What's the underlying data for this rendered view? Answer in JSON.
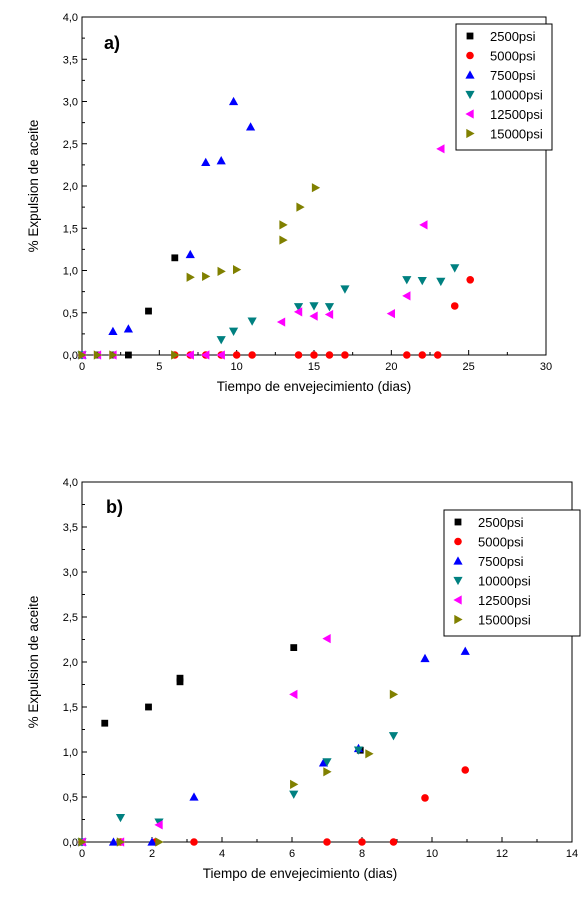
{
  "chart_data": [
    {
      "type": "scatter",
      "panel_label": "a)",
      "xlabel": "Tiempo de envejecimiento (dias)",
      "ylabel": "% Expulsion de aceite",
      "xlim": [
        0,
        30
      ],
      "ylim": [
        0,
        4
      ],
      "xticks": [
        0,
        5,
        10,
        15,
        20,
        25,
        30
      ],
      "yticks": [
        0,
        0.5,
        1,
        1.5,
        2,
        2.5,
        3,
        3.5,
        4
      ],
      "ytick_labels": [
        "0,0",
        "0,5",
        "1,0",
        "1,5",
        "2,0",
        "2,5",
        "3,0",
        "3,5",
        "4,0"
      ],
      "legend_position": "top-right",
      "grid": false,
      "series": [
        {
          "name": "2500psi",
          "marker": "square",
          "color": "#000000",
          "x": [
            0,
            1,
            2,
            3,
            4.3,
            6
          ],
          "y": [
            0,
            0,
            0,
            0,
            0.52,
            1.15
          ]
        },
        {
          "name": "5000psi",
          "marker": "circle",
          "color": "#ff0000",
          "x": [
            0,
            6,
            7,
            8,
            9,
            10,
            11,
            14,
            15,
            16,
            17,
            21,
            22,
            23,
            24.1,
            25.1
          ],
          "y": [
            0,
            0,
            0,
            0,
            0,
            0,
            0,
            0,
            0,
            0,
            0,
            0,
            0,
            0,
            0.58,
            0.89
          ]
        },
        {
          "name": "7500psi",
          "marker": "triangle-up",
          "color": "#0000ff",
          "x": [
            0,
            2,
            3,
            7,
            8,
            9,
            9.8,
            10.9
          ],
          "y": [
            0,
            0.28,
            0.31,
            1.19,
            2.28,
            2.3,
            3.0,
            2.7
          ]
        },
        {
          "name": "10000psi",
          "marker": "triangle-down",
          "color": "#008080",
          "x": [
            0,
            9,
            9.8,
            11,
            14,
            15,
            16,
            17,
            21,
            22,
            23.2,
            24.1
          ],
          "y": [
            0,
            0.18,
            0.28,
            0.4,
            0.57,
            0.58,
            0.57,
            0.78,
            0.89,
            0.88,
            0.87,
            1.03
          ]
        },
        {
          "name": "12500psi",
          "marker": "triangle-left",
          "color": "#ff00ff",
          "x": [
            0,
            1,
            2,
            7,
            8,
            9,
            12.9,
            14,
            15,
            16,
            20,
            21,
            22.1,
            23.2
          ],
          "y": [
            0,
            0,
            0,
            0,
            0,
            0,
            0.39,
            0.51,
            0.46,
            0.48,
            0.49,
            0.7,
            1.54,
            2.44
          ]
        },
        {
          "name": "15000psi",
          "marker": "triangle-right",
          "color": "#808000",
          "x": [
            0,
            1,
            2,
            6,
            7,
            8,
            9,
            10,
            13,
            13,
            14.1,
            15.1
          ],
          "y": [
            0,
            0,
            0,
            0,
            0.92,
            0.93,
            0.99,
            1.01,
            1.36,
            1.54,
            1.75,
            1.98
          ]
        }
      ]
    },
    {
      "type": "scatter",
      "panel_label": "b)",
      "xlabel": "Tiempo de envejecimiento (dias)",
      "ylabel": "% Expulsion de aceite",
      "xlim": [
        0,
        14
      ],
      "ylim": [
        0,
        4
      ],
      "xticks": [
        0,
        2,
        4,
        6,
        8,
        10,
        12,
        14
      ],
      "yticks": [
        0,
        0.5,
        1,
        1.5,
        2,
        2.5,
        3,
        3.5,
        4
      ],
      "ytick_labels": [
        "0,0",
        "0,5",
        "1,0",
        "1,5",
        "2,0",
        "2,5",
        "3,0",
        "3,5",
        "4,0"
      ],
      "legend_position": "top-right",
      "grid": false,
      "series": [
        {
          "name": "2500psi",
          "marker": "square",
          "color": "#000000",
          "x": [
            0.65,
            1.9,
            2.8,
            2.8,
            6.05,
            7.95
          ],
          "y": [
            1.32,
            1.5,
            1.78,
            1.82,
            2.16,
            1.02
          ]
        },
        {
          "name": "5000psi",
          "marker": "circle",
          "color": "#ff0000",
          "x": [
            0,
            1.1,
            2.1,
            3.2,
            7,
            8,
            8.9,
            9.8,
            10.95
          ],
          "y": [
            0,
            0,
            0,
            0,
            0,
            0,
            0,
            0.49,
            0.8
          ]
        },
        {
          "name": "7500psi",
          "marker": "triangle-up",
          "color": "#0000ff",
          "x": [
            0,
            0.9,
            2,
            3.2,
            6.9,
            7.9,
            9.8,
            10.95
          ],
          "y": [
            0,
            0,
            0,
            0.5,
            0.88,
            1.04,
            2.04,
            2.12
          ]
        },
        {
          "name": "10000psi",
          "marker": "triangle-down",
          "color": "#008080",
          "x": [
            0,
            1.1,
            2.2,
            6.05,
            7,
            7.9,
            8.9
          ],
          "y": [
            0,
            0.27,
            0.22,
            0.53,
            0.89,
            1.02,
            1.18
          ]
        },
        {
          "name": "12500psi",
          "marker": "triangle-left",
          "color": "#ff00ff",
          "x": [
            0,
            1.1,
            2.2,
            6.05,
            7
          ],
          "y": [
            0,
            0,
            0.19,
            1.64,
            2.26
          ]
        },
        {
          "name": "15000psi",
          "marker": "triangle-right",
          "color": "#808000",
          "x": [
            0,
            1.1,
            2.2,
            6.05,
            7,
            8.2,
            8.9
          ],
          "y": [
            0,
            0,
            0,
            0.64,
            0.78,
            0.98,
            1.64
          ]
        }
      ]
    }
  ]
}
